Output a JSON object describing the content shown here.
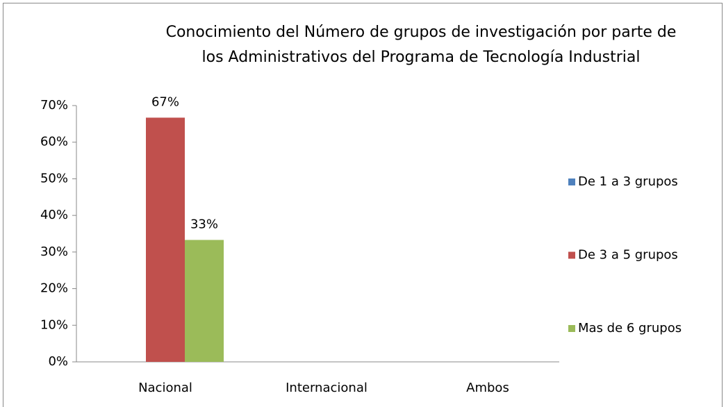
{
  "chart_data": {
    "type": "bar",
    "title": [
      "Conocimiento del Número de grupos de investigación por parte de",
      "los Administrativos del Programa de Tecnología Industrial"
    ],
    "categories": [
      "Nacional",
      "Internacional",
      "Ambos"
    ],
    "series": [
      {
        "name": "De 1 a 3 grupos",
        "color": "#4f81bd",
        "values": [
          0,
          0,
          0
        ],
        "value_labels": [
          null,
          null,
          null
        ]
      },
      {
        "name": "De 3 a 5 grupos",
        "color": "#c0504d",
        "values": [
          66.7,
          0,
          0
        ],
        "value_labels": [
          "67%",
          null,
          null
        ]
      },
      {
        "name": "Mas de 6 grupos",
        "color": "#9bbb59",
        "values": [
          33.3,
          0,
          0
        ],
        "value_labels": [
          "33%",
          null,
          null
        ]
      }
    ],
    "ylim": [
      0,
      70
    ],
    "yticks": [
      {
        "value": 0,
        "label": "0%"
      },
      {
        "value": 10,
        "label": "10%"
      },
      {
        "value": 20,
        "label": "20%"
      },
      {
        "value": 30,
        "label": "30%"
      },
      {
        "value": 40,
        "label": "40%"
      },
      {
        "value": 50,
        "label": "50%"
      },
      {
        "value": 60,
        "label": "60%"
      },
      {
        "value": 70,
        "label": "70%"
      }
    ],
    "legend": "right"
  }
}
